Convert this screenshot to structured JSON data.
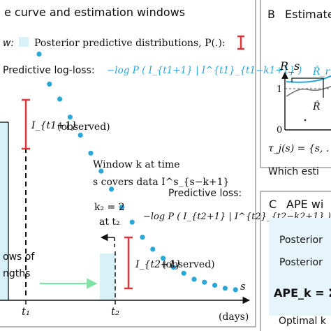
{
  "panelA": {
    "title": "e curve and estimation windows",
    "legend_window": "w:",
    "legend_posterior": "Posterior predictive distributions, P(.):",
    "predictive_logloss_label": "Predictive log-loss:",
    "predictive_logloss_formula": "−log P ( I_{t1+1} | I^{t1}_{t1−k1+1} )",
    "observed_1": "(observed)",
    "observed_1_sym": "I_{t1+1}",
    "window_text_1": "Window k at time",
    "window_text_2": "s covers data I^s_{s−k+1}",
    "k2_label": "k₂ = 2",
    "at_t2": "at t₂",
    "predictive_loss_label": "Predictive loss:",
    "predictive_loss_formula": "−log P ( I_{t2+1} | I^{t2}_{t2−k2+1} )",
    "observed_2": "(observed)",
    "observed_2_sym": "I_{t2+1}",
    "bottom_left_1": "ows of",
    "bottom_left_2": "ngths",
    "x_tick_t1": "t₁",
    "x_tick_t2": "t₂",
    "x_axis_var": "s",
    "x_axis_unit": "(days)"
  },
  "panelB": {
    "letter": "B",
    "title": "Estimate",
    "y_label": "R_s",
    "curve_label_top": "R̂_r",
    "curve_label_bottom": "R̂",
    "tick_1": "1",
    "tick_0": "0",
    "formula": "τ_j(s) = {s, .",
    "question": "Which esti"
  },
  "panelC": {
    "letter": "C",
    "title": "APE wi",
    "row1": "Posterior",
    "row2": "Posterior",
    "ape": "APE_k = Σ",
    "optimal": "Optimal k"
  },
  "colors": {
    "points": "#29a7d6",
    "window_fill": "#d8f1f9",
    "red_bar": "#e0353b",
    "green_arrow": "#7fe3a6",
    "ape_box": "#e6f5fb"
  },
  "chart_data": {
    "type": "scatter",
    "series": [
      {
        "values": [
          0.82,
          0.72,
          0.67,
          0.61,
          0.55,
          0.49,
          0.43,
          0.37,
          0.31,
          0.26,
          0.21,
          0.17,
          0.14,
          0.11,
          0.09,
          0.07,
          0.06,
          0.05,
          0.04,
          0.035
        ]
      }
    ]
  }
}
